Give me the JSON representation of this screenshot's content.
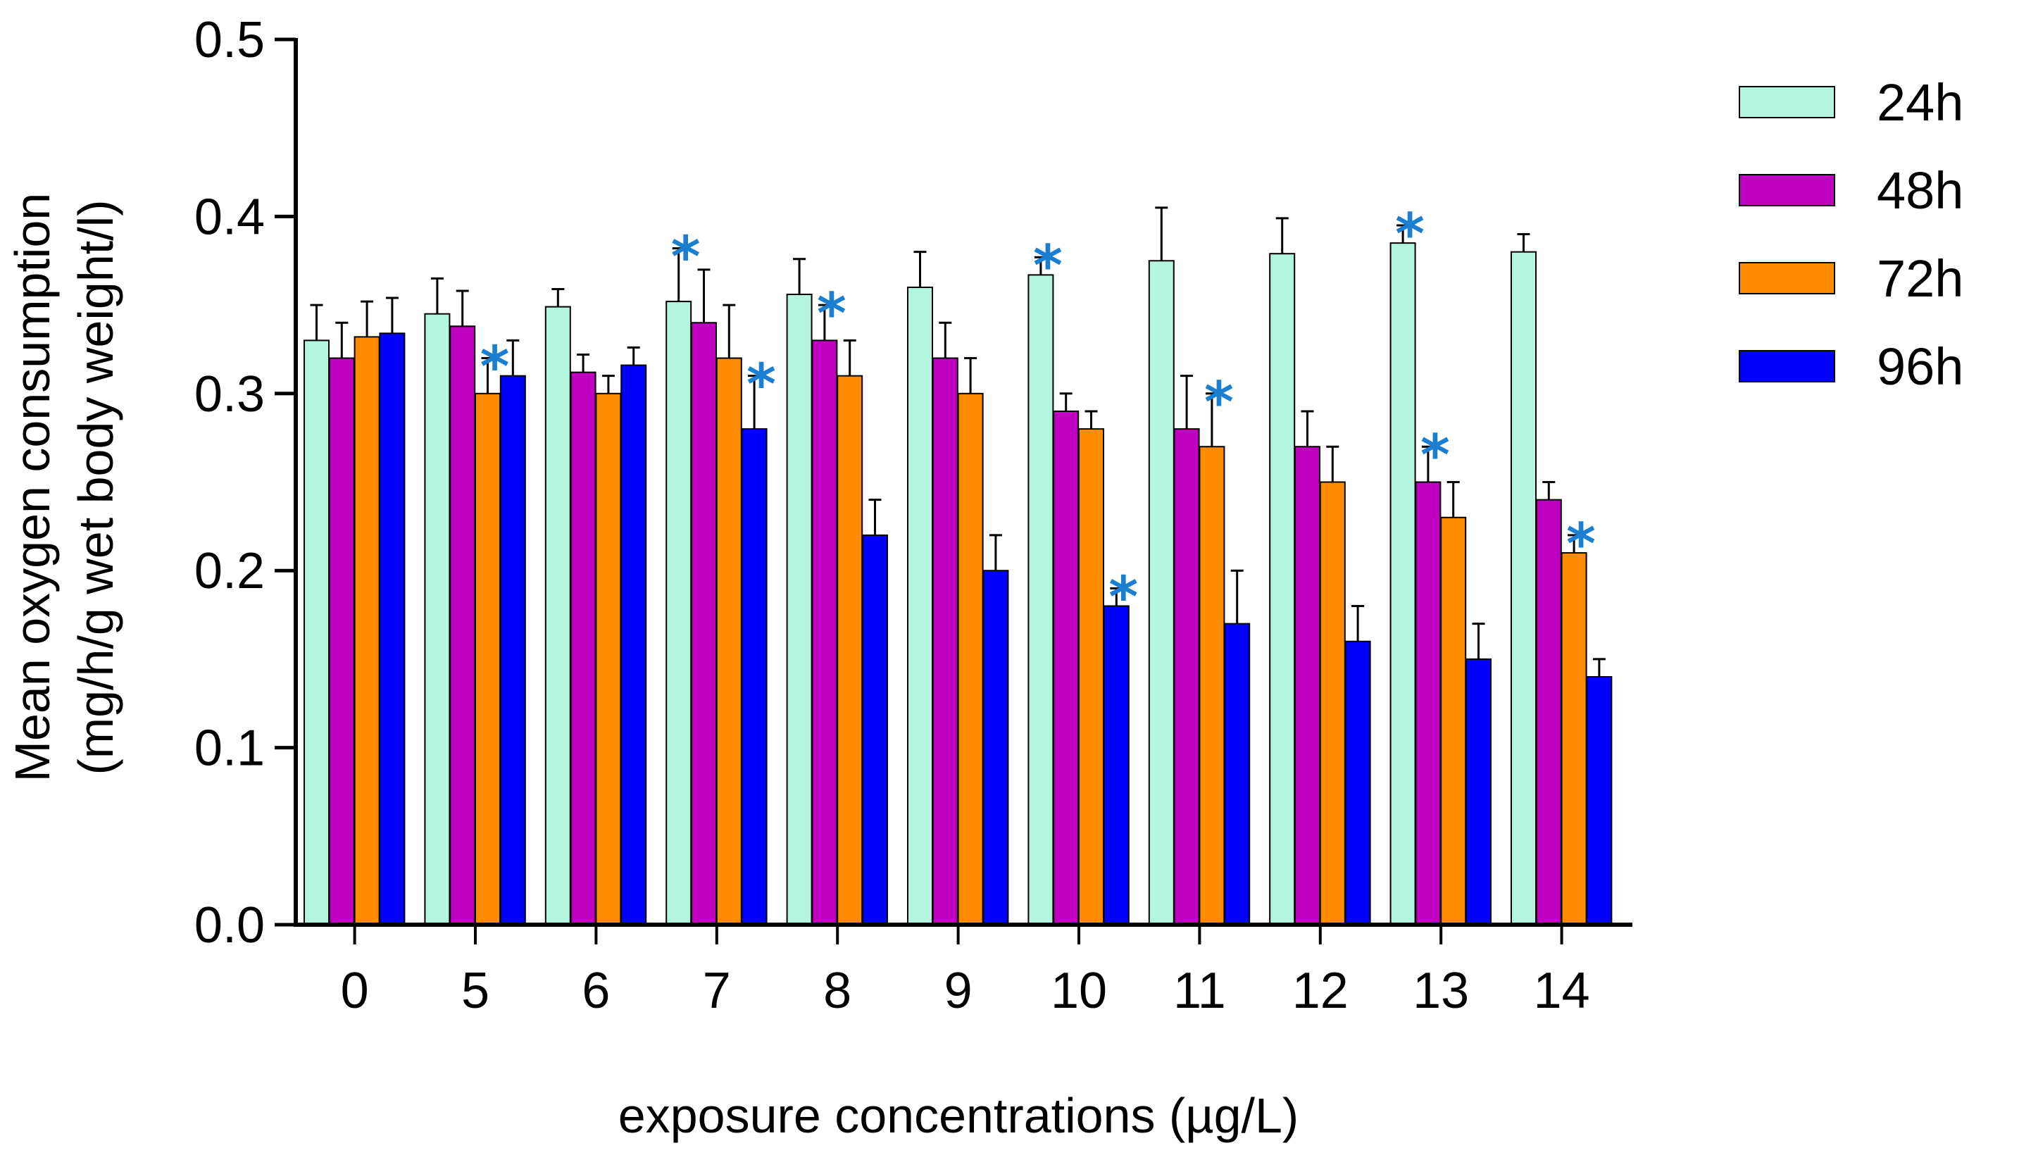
{
  "chart_data": {
    "type": "bar",
    "title": "",
    "xlabel": "exposure concentrations (µg/L)",
    "ylabel_line1": "Mean oxygen consumption",
    "ylabel_line2": "(mg/h/g wet body weight/l)",
    "ylim": [
      0,
      0.5
    ],
    "yticks": [
      "0.0",
      "0.1",
      "0.2",
      "0.3",
      "0.4",
      "0.5"
    ],
    "categories": [
      "0",
      "5",
      "6",
      "7",
      "8",
      "9",
      "10",
      "11",
      "12",
      "13",
      "14"
    ],
    "significance_marker": "*",
    "significance_color": "#1a7fd0",
    "legend_position": "right",
    "series": [
      {
        "name": "24h",
        "color": "#b3f5df",
        "values": [
          0.33,
          0.345,
          0.349,
          0.352,
          0.356,
          0.36,
          0.367,
          0.375,
          0.379,
          0.385,
          0.38
        ],
        "errors": [
          0.02,
          0.02,
          0.01,
          0.03,
          0.02,
          0.02,
          0.01,
          0.03,
          0.02,
          0.01,
          0.01
        ],
        "significant": [
          false,
          false,
          false,
          true,
          false,
          false,
          true,
          false,
          false,
          true,
          false
        ]
      },
      {
        "name": "48h",
        "color": "#c000c0",
        "values": [
          0.32,
          0.338,
          0.312,
          0.34,
          0.33,
          0.32,
          0.29,
          0.28,
          0.27,
          0.25,
          0.24
        ],
        "errors": [
          0.02,
          0.02,
          0.01,
          0.03,
          0.02,
          0.02,
          0.01,
          0.03,
          0.02,
          0.02,
          0.01
        ],
        "significant": [
          false,
          false,
          false,
          false,
          true,
          false,
          false,
          false,
          false,
          true,
          false
        ]
      },
      {
        "name": "72h",
        "color": "#ff8c00",
        "values": [
          0.332,
          0.3,
          0.3,
          0.32,
          0.31,
          0.3,
          0.28,
          0.27,
          0.25,
          0.23,
          0.21
        ],
        "errors": [
          0.02,
          0.02,
          0.01,
          0.03,
          0.02,
          0.02,
          0.01,
          0.03,
          0.02,
          0.02,
          0.01
        ],
        "significant": [
          false,
          true,
          false,
          false,
          false,
          false,
          false,
          true,
          false,
          false,
          true
        ]
      },
      {
        "name": "96h",
        "color": "#0000ff",
        "values": [
          0.334,
          0.31,
          0.316,
          0.28,
          0.22,
          0.2,
          0.18,
          0.17,
          0.16,
          0.15,
          0.14
        ],
        "errors": [
          0.02,
          0.02,
          0.01,
          0.03,
          0.02,
          0.02,
          0.01,
          0.03,
          0.02,
          0.02,
          0.01
        ],
        "significant": [
          false,
          false,
          false,
          true,
          false,
          false,
          true,
          false,
          false,
          false,
          false
        ]
      }
    ]
  }
}
